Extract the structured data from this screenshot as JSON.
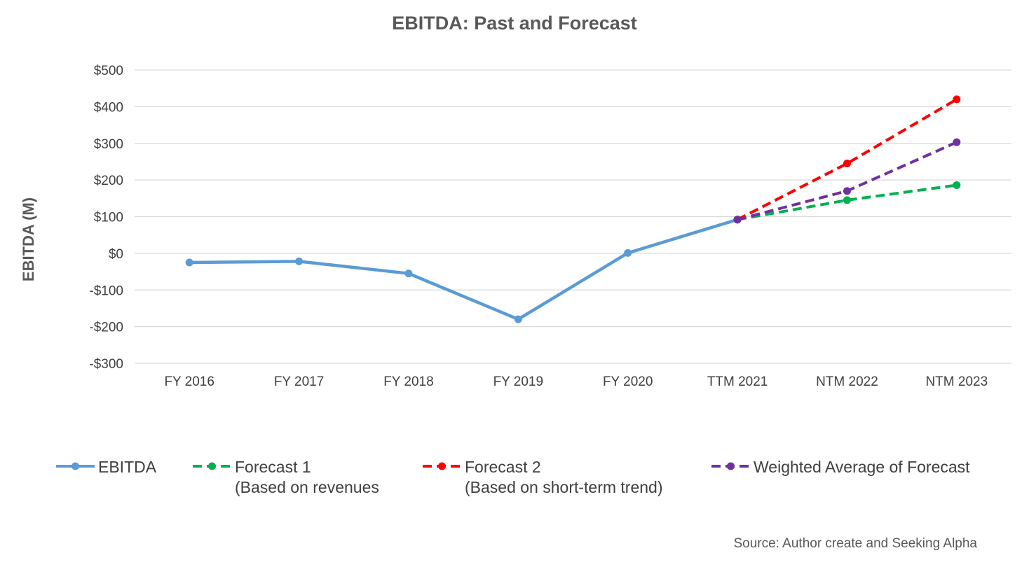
{
  "chart_data": {
    "type": "line",
    "title": "EBITDA: Past and Forecast",
    "xlabel": "",
    "ylabel": "EBITDA (M)",
    "categories": [
      "FY 2016",
      "FY 2017",
      "FY 2018",
      "FY 2019",
      "FY 2020",
      "TTM 2021",
      "NTM 2022",
      "NTM 2023"
    ],
    "ylim": [
      -300,
      500
    ],
    "y_ticks": [
      500,
      400,
      300,
      200,
      100,
      0,
      -100,
      -200,
      -300
    ],
    "y_tick_labels": [
      "$500",
      "$400",
      "$300",
      "$200",
      "$100",
      "$0",
      "-$100",
      "-$200",
      "-$300"
    ],
    "grid": true,
    "legend_position": "bottom",
    "series": [
      {
        "name": "EBITDA",
        "legend_lines": [
          "EBITDA"
        ],
        "color": "#5b9bd5",
        "dashed": false,
        "values": [
          -25,
          -22,
          -55,
          -180,
          1,
          92,
          null,
          null
        ]
      },
      {
        "name": "Forecast 1 (Based on revenues",
        "legend_lines": [
          "Forecast 1",
          "(Based on revenues"
        ],
        "color": "#00b050",
        "dashed": true,
        "values": [
          null,
          null,
          null,
          null,
          null,
          92,
          145,
          186
        ]
      },
      {
        "name": "Forecast 2 (Based on short-term trend)",
        "legend_lines": [
          "Forecast 2",
          "(Based on short-term trend)"
        ],
        "color": "#ff0000",
        "dashed": true,
        "values": [
          null,
          null,
          null,
          null,
          null,
          92,
          245,
          420
        ]
      },
      {
        "name": "Weighted Average of Forecast",
        "legend_lines": [
          "Weighted Average of Forecast"
        ],
        "color": "#7030a0",
        "dashed": true,
        "values": [
          null,
          null,
          null,
          null,
          null,
          92,
          170,
          303
        ]
      }
    ],
    "source": "Source: Author create and Seeking Alpha"
  }
}
